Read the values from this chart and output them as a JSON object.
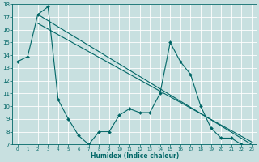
{
  "title": "",
  "xlabel": "Humidex (Indice chaleur)",
  "ylabel": "",
  "xlim": [
    -0.5,
    23.5
  ],
  "ylim": [
    7,
    18
  ],
  "yticks": [
    7,
    8,
    9,
    10,
    11,
    12,
    13,
    14,
    15,
    16,
    17,
    18
  ],
  "xticks": [
    0,
    1,
    2,
    3,
    4,
    5,
    6,
    7,
    8,
    9,
    10,
    11,
    12,
    13,
    14,
    15,
    16,
    17,
    18,
    19,
    20,
    21,
    22,
    23
  ],
  "background_color": "#c8e0e0",
  "grid_color": "#ffffff",
  "line_color": "#006666",
  "line1_x": [
    0,
    1,
    2,
    3,
    4,
    5,
    6,
    7,
    8,
    9,
    10,
    11,
    12,
    13,
    14,
    15,
    16,
    17,
    18,
    19,
    20,
    21,
    22,
    23
  ],
  "line1_y": [
    13.5,
    13.9,
    17.2,
    17.8,
    10.5,
    9.0,
    7.7,
    7.0,
    8.0,
    8.0,
    9.3,
    9.8,
    9.5,
    9.5,
    11.0,
    15.0,
    13.5,
    12.5,
    10.0,
    8.3,
    7.5,
    7.5,
    7.0,
    6.8
  ],
  "line2_start_x": 2,
  "line2_start_y": 17.2,
  "line2_end_x": 23,
  "line2_end_y": 7.0,
  "line3_start_x": 2,
  "line3_start_y": 16.5,
  "line3_end_x": 23,
  "line3_end_y": 7.2
}
